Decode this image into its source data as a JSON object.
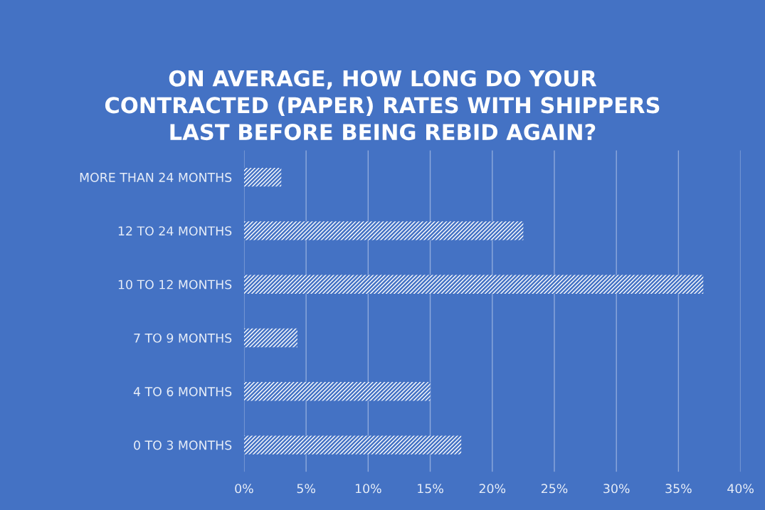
{
  "chart_data": {
    "type": "bar",
    "orientation": "horizontal",
    "title": "ON AVERAGE, HOW LONG DO YOUR\nCONTRACTED (PAPER) RATES WITH SHIPPERS\nLAST BEFORE BEING REBID AGAIN?",
    "categories": [
      "MORE THAN 24 MONTHS",
      "12 TO 24 MONTHS",
      "10 TO 12 MONTHS",
      "7 TO 9 MONTHS",
      "4 TO 6 MONTHS",
      "0 TO 3 MONTHS"
    ],
    "values": [
      3,
      22.5,
      37,
      4.3,
      15,
      17.5
    ],
    "color": "#ffffff",
    "xlim": [
      0,
      40
    ],
    "xticks": [
      {
        "value": 0,
        "label": "0%"
      },
      {
        "value": 5,
        "label": "5%"
      },
      {
        "value": 10,
        "label": "10%"
      },
      {
        "value": 15,
        "label": "15%"
      },
      {
        "value": 20,
        "label": "20%"
      },
      {
        "value": 25,
        "label": "25%"
      },
      {
        "value": 30,
        "label": "30%"
      },
      {
        "value": 35,
        "label": "35%"
      },
      {
        "value": 40,
        "label": "40%"
      }
    ],
    "grid": "x"
  }
}
